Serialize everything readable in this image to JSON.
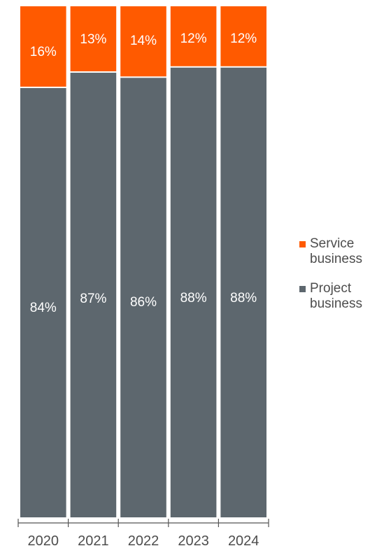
{
  "chart_data": {
    "type": "bar",
    "stacked": true,
    "normalized_percent": true,
    "categories": [
      "2020",
      "2021",
      "2022",
      "2023",
      "2024"
    ],
    "series": [
      {
        "name": "Project business",
        "values": [
          84,
          87,
          86,
          88,
          88
        ],
        "labels": [
          "84%",
          "87%",
          "86%",
          "88%",
          "88%"
        ],
        "color": "#5d676e"
      },
      {
        "name": "Service business",
        "values": [
          16,
          13,
          14,
          12,
          12
        ],
        "labels": [
          "16%",
          "13%",
          "14%",
          "12%",
          "12%"
        ],
        "color": "#ff5a00"
      }
    ],
    "ylim": [
      0,
      100
    ],
    "title": "",
    "xlabel": "",
    "ylabel": "",
    "grid": false,
    "legend_position": "right",
    "colors": {
      "axis": "#555555",
      "data_label": "#ffffff",
      "tick_label": "#4d4d4d",
      "legend_text": "#4d4d4d"
    }
  }
}
